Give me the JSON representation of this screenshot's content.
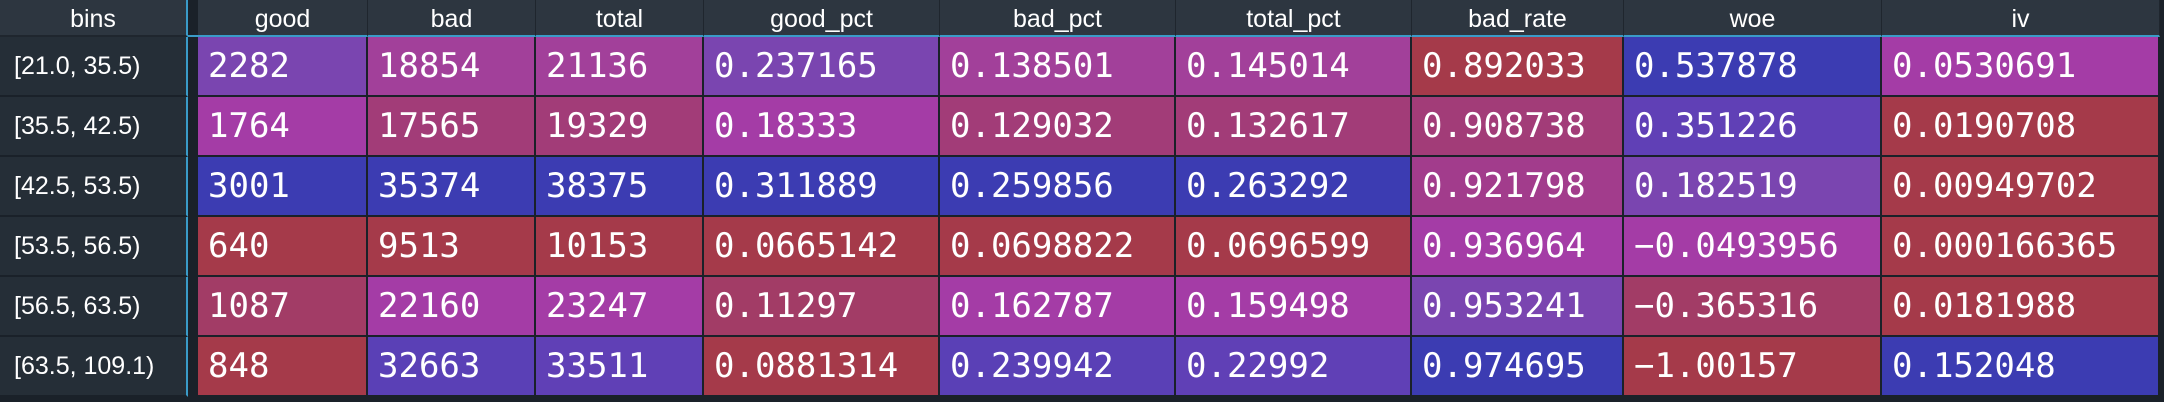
{
  "columns": {
    "bins": "bins",
    "good": "good",
    "bad": "bad",
    "total": "total",
    "good_pct": "good_pct",
    "bad_pct": "bad_pct",
    "total_pct": "total_pct",
    "bad_rate": "bad_rate",
    "woe": "woe",
    "iv": "iv"
  },
  "rows": [
    {
      "bins": "[21.0, 35.5)",
      "good": "2282",
      "bad": "18854",
      "total": "21136",
      "good_pct": "0.237165",
      "bad_pct": "0.138501",
      "total_pct": "0.145014",
      "bad_rate": "0.892033",
      "woe": "0.537878",
      "iv": "0.0530691",
      "colors": {
        "good": "#7a45b0",
        "bad": "#a2409a",
        "total": "#a2409a",
        "good_pct": "#7a45b0",
        "bad_pct": "#a2409a",
        "total_pct": "#a2409a",
        "bad_rate": "#a53a4a",
        "woe": "#3c3cb2",
        "iv": "#a43ca6"
      }
    },
    {
      "bins": "[35.5, 42.5)",
      "good": "1764",
      "bad": "17565",
      "total": "19329",
      "good_pct": "0.18333",
      "bad_pct": "0.129032",
      "total_pct": "0.132617",
      "bad_rate": "0.908738",
      "woe": "0.351226",
      "iv": "0.0190708",
      "colors": {
        "good": "#a43ca6",
        "bad": "#a23c78",
        "total": "#a23c78",
        "good_pct": "#a43ca6",
        "bad_pct": "#a23c78",
        "total_pct": "#a23c78",
        "bad_rate": "#a23c78",
        "woe": "#6040b6",
        "iv": "#a53a4a"
      }
    },
    {
      "bins": "[42.5, 53.5)",
      "good": "3001",
      "bad": "35374",
      "total": "38375",
      "good_pct": "0.311889",
      "bad_pct": "0.259856",
      "total_pct": "0.263292",
      "bad_rate": "0.921798",
      "woe": "0.182519",
      "iv": "0.00949702",
      "colors": {
        "good": "#3c3cb2",
        "bad": "#3c3cb2",
        "total": "#3c3cb2",
        "good_pct": "#3c3cb2",
        "bad_pct": "#3c3cb2",
        "total_pct": "#3c3cb2",
        "bad_rate": "#a23c8c",
        "woe": "#7a45b0",
        "iv": "#a53a4a"
      }
    },
    {
      "bins": "[53.5, 56.5)",
      "good": "640",
      "bad": "9513",
      "total": "10153",
      "good_pct": "0.0665142",
      "bad_pct": "0.0698822",
      "total_pct": "0.0696599",
      "bad_rate": "0.936964",
      "woe": "-0.0493956",
      "iv": "0.000166365",
      "colors": {
        "good": "#a53a4a",
        "bad": "#a53a4a",
        "total": "#a53a4a",
        "good_pct": "#a53a4a",
        "bad_pct": "#a53a4a",
        "total_pct": "#a53a4a",
        "bad_rate": "#a43ca6",
        "woe": "#a43ca6",
        "iv": "#a53a4a"
      }
    },
    {
      "bins": "[56.5, 63.5)",
      "good": "1087",
      "bad": "22160",
      "total": "23247",
      "good_pct": "0.11297",
      "bad_pct": "0.162787",
      "total_pct": "0.159498",
      "bad_rate": "0.953241",
      "woe": "-0.365316",
      "iv": "0.0181988",
      "colors": {
        "good": "#a23c66",
        "bad": "#a43ca6",
        "total": "#a43ca6",
        "good_pct": "#a23c66",
        "bad_pct": "#a43ca6",
        "total_pct": "#a43ca6",
        "bad_rate": "#7a45b0",
        "woe": "#a23c66",
        "iv": "#a53a4a"
      }
    },
    {
      "bins": "[63.5, 109.1)",
      "good": "848",
      "bad": "32663",
      "total": "33511",
      "good_pct": "0.0881314",
      "bad_pct": "0.239942",
      "total_pct": "0.22992",
      "bad_rate": "0.974695",
      "woe": "-1.00157",
      "iv": "0.152048",
      "colors": {
        "good": "#a53a4a",
        "bad": "#5a40b6",
        "total": "#6040b6",
        "good_pct": "#a53a4a",
        "bad_pct": "#5a40b6",
        "total_pct": "#6040b6",
        "bad_rate": "#3c3cb2",
        "woe": "#a53a4a",
        "iv": "#3c3cb2"
      }
    }
  ]
}
